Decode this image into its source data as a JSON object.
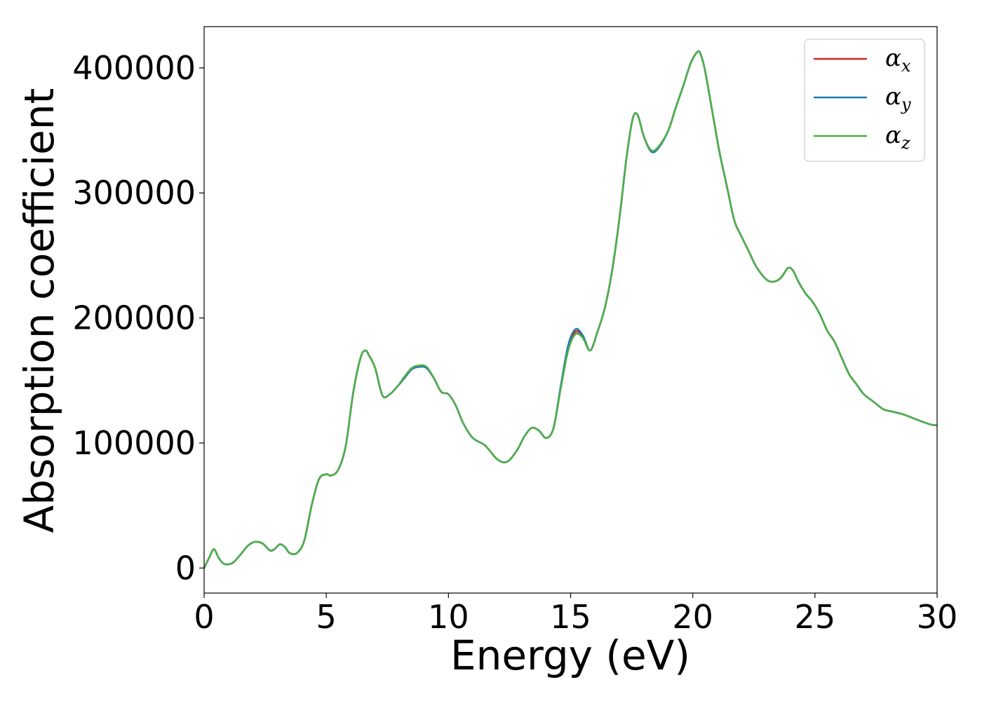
{
  "chart_data": {
    "type": "line",
    "xlabel": "Energy (eV)",
    "ylabel": "Absorption coefficient",
    "xlim": [
      0,
      30
    ],
    "ylim": [
      -20000,
      433000
    ],
    "xticks": [
      0,
      5,
      10,
      15,
      20,
      25,
      30
    ],
    "yticks": [
      0,
      100000,
      200000,
      300000,
      400000
    ],
    "grid": false,
    "legend_position": "top-right",
    "x": [
      0,
      0.2,
      0.4,
      0.6,
      0.8,
      1.0,
      1.2,
      1.5,
      1.8,
      2.1,
      2.4,
      2.7,
      2.9,
      3.1,
      3.3,
      3.5,
      3.8,
      4.1,
      4.4,
      4.7,
      5.0,
      5.2,
      5.5,
      5.8,
      6.1,
      6.4,
      6.6,
      6.75,
      7.0,
      7.3,
      7.6,
      7.9,
      8.2,
      8.5,
      8.8,
      9.1,
      9.4,
      9.7,
      10.0,
      10.3,
      10.6,
      11.0,
      11.5,
      12.0,
      12.4,
      12.8,
      13.1,
      13.4,
      13.7,
      14.0,
      14.3,
      14.6,
      14.9,
      15.2,
      15.5,
      15.8,
      16.1,
      16.4,
      16.7,
      17.0,
      17.3,
      17.55,
      17.75,
      18.0,
      18.3,
      18.6,
      19.0,
      19.3,
      19.6,
      19.9,
      20.15,
      20.3,
      20.5,
      20.8,
      21.1,
      21.4,
      21.7,
      22.0,
      22.3,
      22.6,
      23.0,
      23.3,
      23.6,
      23.9,
      24.1,
      24.3,
      24.6,
      24.9,
      25.2,
      25.5,
      25.8,
      26.1,
      26.4,
      26.7,
      27.0,
      27.4,
      27.8,
      28.2,
      28.6,
      29.0,
      29.4,
      29.7,
      30.0
    ],
    "series": [
      {
        "name": "x",
        "color": "#d62728",
        "values": [
          0,
          8000,
          15000,
          8000,
          3500,
          3000,
          4500,
          11000,
          18000,
          21000,
          19500,
          14000,
          15500,
          19000,
          17000,
          12000,
          12000,
          22000,
          50000,
          71000,
          75000,
          74000,
          79000,
          98000,
          140000,
          168000,
          174000,
          170000,
          160000,
          138000,
          139000,
          145000,
          152000,
          159000,
          161000,
          160000,
          152000,
          141000,
          139000,
          130000,
          116000,
          104000,
          98000,
          87000,
          85000,
          94000,
          105000,
          112000,
          110000,
          104000,
          112000,
          145000,
          176000,
          189000,
          185000,
          174000,
          189000,
          208000,
          238000,
          280000,
          330000,
          360000,
          362000,
          345000,
          334000,
          337000,
          350000,
          368000,
          385000,
          403000,
          412000,
          412000,
          398000,
          365000,
          332000,
          305000,
          278000,
          265000,
          253000,
          241000,
          231000,
          229000,
          232000,
          240000,
          238000,
          230000,
          220000,
          213000,
          203000,
          190000,
          181000,
          168000,
          155000,
          147000,
          139000,
          133000,
          127000,
          125000,
          123000,
          120000,
          117000,
          115000,
          114000
        ]
      },
      {
        "name": "y",
        "color": "#1f77b4",
        "values": [
          0,
          8000,
          15000,
          8000,
          3500,
          3000,
          4500,
          11000,
          18000,
          21000,
          19500,
          14000,
          15500,
          19000,
          17000,
          12000,
          12000,
          22000,
          50000,
          71000,
          75000,
          74000,
          79000,
          98000,
          140000,
          168000,
          174000,
          170000,
          160000,
          138000,
          139000,
          145000,
          152000,
          159000,
          161000,
          160000,
          152000,
          141000,
          139000,
          130000,
          116000,
          104000,
          98000,
          87000,
          85000,
          94000,
          105000,
          112000,
          110000,
          104000,
          112000,
          146000,
          178000,
          191000,
          186000,
          174000,
          189000,
          208000,
          238000,
          280000,
          330000,
          360000,
          362000,
          345000,
          333000,
          336000,
          350000,
          368000,
          385000,
          403000,
          412000,
          412000,
          398000,
          365000,
          332000,
          305000,
          278000,
          265000,
          253000,
          241000,
          231000,
          229000,
          232000,
          240000,
          238000,
          230000,
          220000,
          213000,
          203000,
          190000,
          181000,
          168000,
          155000,
          147000,
          139000,
          133000,
          127000,
          125000,
          123000,
          120000,
          117000,
          115000,
          114000
        ]
      },
      {
        "name": "z",
        "color": "#4daf4a",
        "values": [
          0,
          8000,
          15000,
          8000,
          3500,
          3000,
          4500,
          11000,
          18000,
          21000,
          19500,
          14000,
          15500,
          19000,
          17000,
          12000,
          12000,
          22000,
          50000,
          71000,
          75000,
          74000,
          79000,
          98000,
          140000,
          168000,
          174000,
          170000,
          160000,
          138000,
          139000,
          145000,
          153000,
          160000,
          162000,
          161000,
          152000,
          141000,
          139000,
          130000,
          116000,
          104000,
          98000,
          87000,
          85000,
          94000,
          105000,
          112000,
          110000,
          104000,
          112000,
          144000,
          174000,
          187000,
          184000,
          174000,
          189000,
          208000,
          238000,
          280000,
          330000,
          360000,
          362000,
          345000,
          334000,
          337000,
          350000,
          368000,
          385000,
          403000,
          412000,
          412000,
          398000,
          365000,
          332000,
          305000,
          278000,
          265000,
          253000,
          241000,
          231000,
          229000,
          232000,
          240000,
          238000,
          230000,
          220000,
          213000,
          203000,
          190000,
          181000,
          168000,
          155000,
          147000,
          139000,
          133000,
          127000,
          125000,
          123000,
          120000,
          117000,
          115000,
          114000
        ]
      }
    ],
    "legend": {
      "symbol": "α",
      "entries": [
        {
          "symbol": "α",
          "subscript": "x",
          "color": "#d62728"
        },
        {
          "symbol": "α",
          "subscript": "y",
          "color": "#1f77b4"
        },
        {
          "symbol": "α",
          "subscript": "z",
          "color": "#4daf4a"
        }
      ]
    }
  }
}
